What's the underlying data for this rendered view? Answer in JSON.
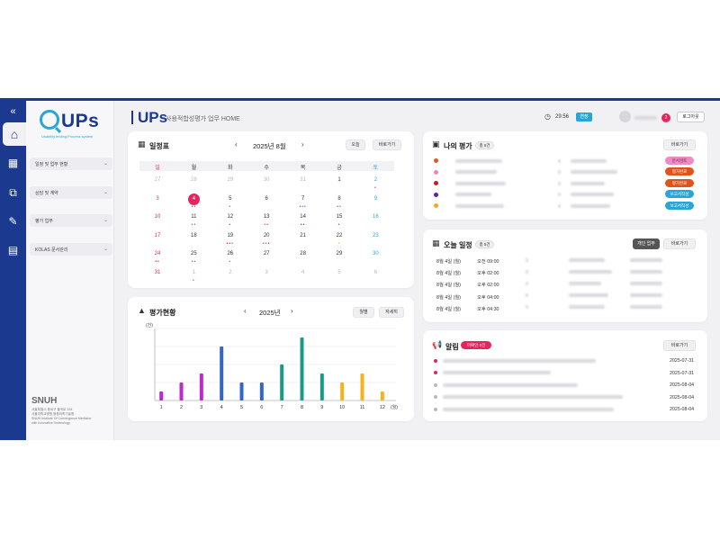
{
  "app": {
    "brand": "UPs",
    "brand_tagline": "Usability testing Process system",
    "subtitle": "사용적합성평가 업무 HOME"
  },
  "header": {
    "timer": "29:56",
    "extend": "연장",
    "notif_count": "2",
    "logout": "로그아웃"
  },
  "sidebar": {
    "items": [
      {
        "label": "일정 및 업무 현황"
      },
      {
        "label": "상담 및 계약"
      },
      {
        "label": "평가 업무"
      },
      {
        "label": "KOLAS 문서관리"
      }
    ],
    "footer_logo": "SNUH",
    "footer_lines": [
      "서울특별시 종로구 율곡로 324",
      "서울대학교병원 융합의학기술원",
      "SNUH Institute Of Convergence Medicine",
      "with Innovative Technology"
    ]
  },
  "calendar": {
    "title": "일정표",
    "month": "2025년 8월",
    "today_btn": "오늘",
    "goto_btn": "바로가기",
    "weekdays": [
      "일",
      "월",
      "화",
      "수",
      "목",
      "금",
      "토"
    ],
    "weeks": [
      [
        "27",
        "28",
        "29",
        "30",
        "31",
        "1",
        "2"
      ],
      [
        "3",
        "4",
        "5",
        "6",
        "7",
        "8",
        "9"
      ],
      [
        "10",
        "11",
        "12",
        "13",
        "14",
        "15",
        "16"
      ],
      [
        "17",
        "18",
        "19",
        "20",
        "21",
        "22",
        "23"
      ],
      [
        "24",
        "25",
        "26",
        "27",
        "28",
        "29",
        "30"
      ],
      [
        "31",
        "1",
        "2",
        "3",
        "4",
        "5",
        "6"
      ]
    ],
    "today": "4"
  },
  "eval_chart": {
    "title": "평가현황",
    "year": "2025년",
    "btn_month": "월별",
    "btn_detail": "자세히"
  },
  "chart_data": {
    "type": "bar",
    "categories": [
      "1",
      "2",
      "3",
      "4",
      "5",
      "6",
      "7",
      "8",
      "9",
      "10",
      "11",
      "12"
    ],
    "values": [
      1,
      2,
      3,
      6,
      2,
      2,
      4,
      7,
      3,
      2,
      3,
      1
    ],
    "colors": [
      "#c026d3",
      "#c026d3",
      "#c026d3",
      "#3565c9",
      "#3565c9",
      "#3565c9",
      "#179c86",
      "#179c86",
      "#179c86",
      "#f5b31b",
      "#f5b31b",
      "#f5b31b"
    ],
    "ylabel": "(건)",
    "xlabel": "(월)",
    "ylim": [
      0,
      8
    ],
    "grid": true
  },
  "my_eval": {
    "title": "나의 평가",
    "count": "총 6건",
    "goto_btn": "바로가기",
    "rows": [
      {
        "dot": "#e05a1c",
        "status": "문서검토",
        "sc": "#f08ac2",
        "sf": "#6a1b4d"
      },
      {
        "dot": "#e887c8",
        "status": "평가완료",
        "sc": "#e0531a",
        "sf": "#ffffff"
      },
      {
        "dot": "#c21d2b",
        "status": "평가완료",
        "sc": "#e0531a",
        "sf": "#ffffff"
      },
      {
        "dot": "#5b21b6",
        "status": "보고서작성",
        "sc": "#2aa6d6",
        "sf": "#ffffff"
      },
      {
        "dot": "#f5a524",
        "status": "보고서작성",
        "sc": "#2aa6d6",
        "sf": "#ffffff"
      }
    ]
  },
  "today_sched": {
    "title": "오늘 일정",
    "count": "총 5건",
    "personal_btn": "개인 업무",
    "goto_btn": "바로가기",
    "rows": [
      {
        "date": "8월 4일 (월)",
        "time": "오전 09:00"
      },
      {
        "date": "8월 4일 (월)",
        "time": "오후 02:00"
      },
      {
        "date": "8월 4일 (월)",
        "time": "오후 02:00"
      },
      {
        "date": "8월 4일 (월)",
        "time": "오후 04:00"
      },
      {
        "date": "8월 4일 (월)",
        "time": "오후 04:30"
      }
    ]
  },
  "alerts": {
    "title": "알림",
    "unread": "미확인 2건",
    "goto_btn": "바로가기",
    "rows": [
      {
        "date": "2025-07-31",
        "unread": true
      },
      {
        "date": "2025-07-31",
        "unread": true
      },
      {
        "date": "2025-08-04",
        "unread": false
      },
      {
        "date": "2025-08-04",
        "unread": false
      },
      {
        "date": "2025-08-04",
        "unread": false
      }
    ]
  }
}
